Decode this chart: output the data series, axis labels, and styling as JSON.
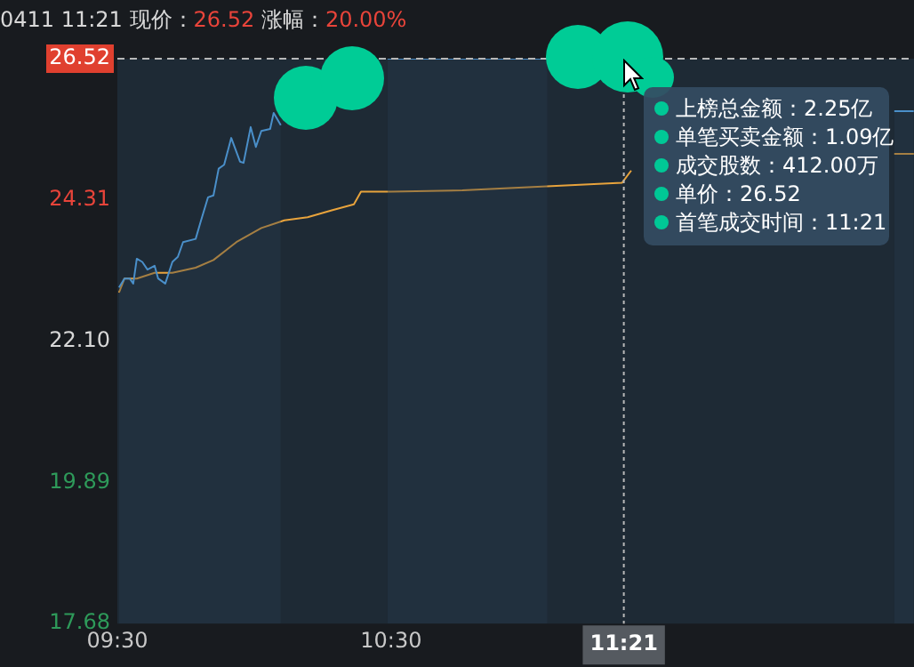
{
  "chart_data": {
    "type": "line",
    "title": "0411 11:21 现价：26.52 涨幅：20.00%",
    "xlim": [
      9.5,
      12.41
    ],
    "xticks": [
      {
        "value": 9.5,
        "label": "09:30"
      },
      {
        "value": 10.5,
        "label": "10:30"
      }
    ],
    "ylim": [
      17.68,
      26.52
    ],
    "yticks": [
      17.68,
      19.89,
      {
        "value": 22.1,
        "label": "22.10"
      },
      24.31,
      26.52
    ],
    "grid": false,
    "legend": false,
    "marker": "none",
    "series": [
      {
        "type": "area",
        "color": "#4a8fc9",
        "x": [
          9.506,
          9.526,
          9.545,
          9.558,
          9.571,
          9.591,
          9.61,
          9.636,
          9.649,
          9.675,
          9.701,
          9.721,
          9.74,
          9.786,
          9.805,
          9.831,
          9.851,
          9.87,
          9.89,
          9.916,
          9.948,
          9.961,
          9.987,
          10.006,
          10.026,
          10.058,
          10.071,
          10.097,
          10.2,
          10.487,
          11.071,
          11.2,
          11.526,
          11.539,
          11.558,
          11.604,
          11.649,
          11.688,
          11.753,
          11.779,
          11.818,
          11.9,
          12.234,
          12.273,
          12.338,
          12.409
        ],
        "values": [
          22.94,
          23.08,
          23.08,
          23.0,
          23.39,
          23.34,
          23.22,
          23.28,
          23.08,
          23.0,
          23.34,
          23.42,
          23.65,
          23.7,
          23.98,
          24.35,
          24.38,
          24.8,
          24.86,
          25.28,
          24.91,
          24.89,
          25.45,
          25.14,
          25.39,
          25.42,
          25.67,
          25.48,
          null,
          26.52,
          26.52,
          null,
          null,
          null,
          null,
          null,
          null,
          null,
          null,
          null,
          null,
          null,
          null,
          null,
          25.7,
          25.7
        ]
      },
      {
        "type": "line",
        "color": "#e8a33c",
        "x": [
          9.506,
          9.526,
          9.571,
          9.636,
          9.701,
          9.786,
          9.851,
          9.935,
          10.026,
          10.11,
          10.195,
          10.286,
          10.364,
          10.39,
          10.5,
          10.76,
          11.344,
          11.377,
          11.429,
          11.8,
          12.338,
          12.409
        ],
        "values": [
          22.86,
          23.08,
          23.08,
          23.17,
          23.17,
          23.25,
          23.37,
          23.65,
          23.87,
          23.99,
          24.04,
          24.15,
          24.24,
          24.44,
          24.44,
          24.46,
          24.58,
          24.77,
          null,
          null,
          25.03,
          25.03
        ]
      }
    ],
    "ref_lines": [
      {
        "axis": "x",
        "value": 11.35,
        "label": "11:21",
        "line_style": "dotted"
      },
      {
        "axis": "y",
        "value": 26.52,
        "line_style": "dashed"
      }
    ],
    "annotations": [
      "上榜总金额：2.25亿",
      "单笔买卖金额：1.09亿",
      "成交股数：412.00万",
      "单价：26.52",
      "首笔成交时间：11:21"
    ]
  }
}
